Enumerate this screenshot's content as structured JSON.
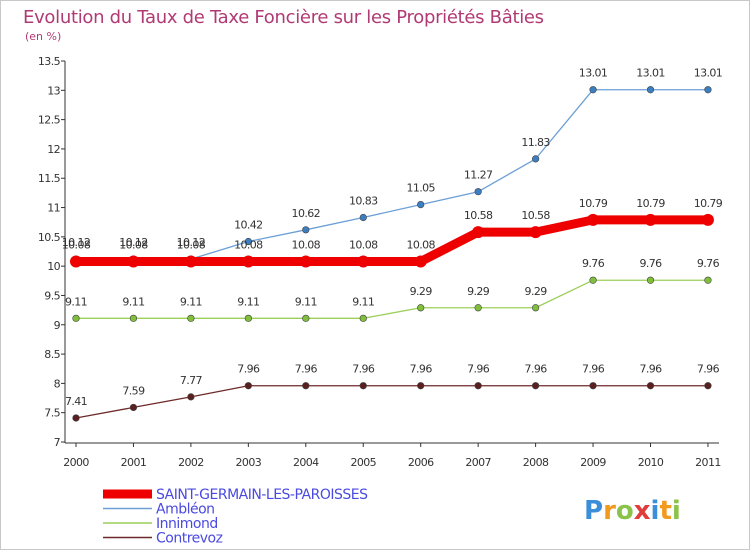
{
  "chart_data": {
    "type": "line",
    "title": "Evolution du Taux de Taxe Foncière sur les Propriétés Bâties",
    "subtitle": "(en %)",
    "xlabel": "",
    "ylabel": "",
    "categories": [
      "2000",
      "2001",
      "2002",
      "2003",
      "2004",
      "2005",
      "2006",
      "2007",
      "2008",
      "2009",
      "2010",
      "2011"
    ],
    "ylim": [
      7,
      13.5
    ],
    "yticks": [
      "7",
      "7.5",
      "8",
      "8.5",
      "9",
      "9.5",
      "10",
      "10.5",
      "11",
      "11.5",
      "12",
      "12.5",
      "13",
      "13.5"
    ],
    "grid": false,
    "legend_position": "bottom-left",
    "series": [
      {
        "name": "Ambléon",
        "color": "#6b9fd6",
        "marker_color": "#3b7ec2",
        "values": [
          10.12,
          10.12,
          10.12,
          10.42,
          10.62,
          10.83,
          11.05,
          11.27,
          11.83,
          13.01,
          13.01,
          13.01
        ],
        "labels": [
          "10.12",
          "10.12",
          "10.12",
          "10.42",
          "10.62",
          "10.83",
          "11.05",
          "11.27",
          "11.83",
          "13.01",
          "13.01",
          "13.01"
        ]
      },
      {
        "name": "Innimond",
        "color": "#9ccf5a",
        "marker_color": "#7fbf3a",
        "values": [
          9.11,
          9.11,
          9.11,
          9.11,
          9.11,
          9.11,
          9.29,
          9.29,
          9.29,
          9.76,
          9.76,
          9.76
        ],
        "labels": [
          "9.11",
          "9.11",
          "9.11",
          "9.11",
          "9.11",
          "9.11",
          "9.29",
          "9.29",
          "9.29",
          "9.76",
          "9.76",
          "9.76"
        ]
      },
      {
        "name": "Contrevoz",
        "color": "#6e2a2a",
        "marker_color": "#5a1f1f",
        "values": [
          7.41,
          7.59,
          7.77,
          7.96,
          7.96,
          7.96,
          7.96,
          7.96,
          7.96,
          7.96,
          7.96,
          7.96
        ],
        "labels": [
          "7.41",
          "7.59",
          "7.77",
          "7.96",
          "7.96",
          "7.96",
          "7.96",
          "7.96",
          "7.96",
          "7.96",
          "7.96",
          "7.96"
        ]
      },
      {
        "name": "SAINT-GERMAIN-LES-PAROISSES",
        "color": "#ee0000",
        "marker_color": "#ee0000",
        "emphasis": true,
        "values": [
          10.08,
          10.08,
          10.08,
          10.08,
          10.08,
          10.08,
          10.08,
          10.58,
          10.58,
          10.79,
          10.79,
          10.79
        ],
        "labels": [
          "10.08",
          "10.08",
          "10.08",
          "10.08",
          "10.08",
          "10.08",
          "10.08",
          "10.58",
          "10.58",
          "10.79",
          "10.79",
          "10.79"
        ]
      }
    ],
    "legend_order": [
      "SAINT-GERMAIN-LES-PAROISSES",
      "Ambléon",
      "Innimond",
      "Contrevoz"
    ]
  },
  "logo": {
    "letters": [
      "P",
      "r",
      "o",
      "x",
      "i",
      "t",
      "i"
    ],
    "colors": [
      "#3a8fd8",
      "#f29a1d",
      "#8bc34a",
      "#e03c3c",
      "#3a8fd8",
      "#f29a1d",
      "#8bc34a"
    ]
  }
}
